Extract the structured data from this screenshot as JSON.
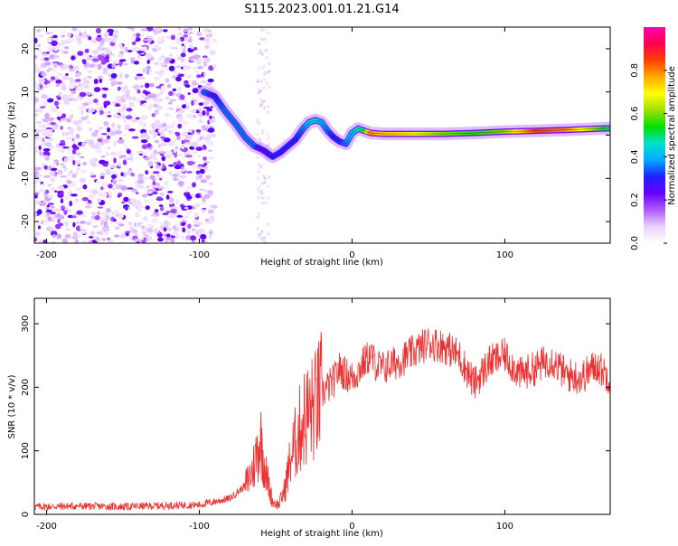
{
  "title": "S115.2023.001.01.21.G14",
  "chart_data": [
    {
      "type": "heatmap",
      "xlabel": "Height of straight line (km)",
      "ylabel": "Frequency (Hz)",
      "xlim": [
        -208,
        169
      ],
      "ylim": [
        -25,
        25
      ],
      "xticks": [
        -200,
        -100,
        0,
        100
      ],
      "yticks": [
        20,
        10,
        0,
        -10,
        -20
      ],
      "colorbar": {
        "label": "Normalized spectral amplitude",
        "range": [
          0,
          1
        ],
        "ticks": [
          0.0,
          0.2,
          0.4,
          0.6,
          0.8
        ],
        "colors": [
          "#ffffff",
          "#e9d2ff",
          "#b05cff",
          "#6a00ff",
          "#2020ff",
          "#00aaff",
          "#00e0d0",
          "#00e000",
          "#a0e000",
          "#ffff00",
          "#ffaa00",
          "#ff4000",
          "#ff0050",
          "#ff00b0"
        ]
      },
      "ridge": {
        "x": [
          -97,
          -90,
          -83,
          -76,
          -70,
          -64,
          -58,
          -52,
          -47,
          -42,
          -37,
          -32,
          -28,
          -24,
          -20,
          -16,
          -12,
          -8,
          -4,
          0,
          4,
          8,
          12,
          20,
          40,
          60,
          80,
          100,
          120,
          140,
          160,
          169
        ],
        "y": [
          10,
          9,
          5.5,
          2.5,
          -0.5,
          -2.5,
          -3.5,
          -5,
          -4,
          -2.5,
          -1,
          1.5,
          3,
          3.5,
          3,
          1,
          -0.5,
          -1.5,
          -2,
          0.5,
          1.5,
          1,
          0.5,
          0.3,
          0.3,
          0.3,
          0.5,
          0.8,
          1.0,
          1.2,
          1.5,
          1.6
        ],
        "amplitude": [
          0.35,
          0.3,
          0.35,
          0.35,
          0.35,
          0.35,
          0.25,
          0.3,
          0.3,
          0.3,
          0.3,
          0.35,
          0.4,
          0.45,
          0.4,
          0.35,
          0.3,
          0.3,
          0.35,
          0.4,
          0.45,
          0.5,
          0.8,
          0.75,
          0.7,
          0.6,
          0.55,
          0.6,
          0.85,
          0.8,
          0.6,
          0.5
        ]
      }
    },
    {
      "type": "line",
      "xlabel": "Height of straight line (km)",
      "ylabel": "SNR (10 * v/v)",
      "xlim": [
        -208,
        169
      ],
      "ylim": [
        0,
        340
      ],
      "xticks": [
        -200,
        -100,
        0,
        100
      ],
      "yticks": [
        0,
        100,
        200,
        300
      ],
      "color": "#ee3030",
      "x": [
        -208,
        -180,
        -150,
        -120,
        -100,
        -80,
        -70,
        -65,
        -60,
        -56,
        -52,
        -48,
        -44,
        -40,
        -36,
        -32,
        -28,
        -24,
        -20,
        -16,
        -12,
        -8,
        -4,
        0,
        4,
        8,
        12,
        16,
        20,
        30,
        40,
        50,
        60,
        70,
        80,
        90,
        100,
        110,
        120,
        130,
        140,
        150,
        160,
        169
      ],
      "y": [
        12,
        13,
        12,
        14,
        15,
        25,
        45,
        70,
        120,
        60,
        20,
        15,
        40,
        90,
        120,
        150,
        160,
        170,
        190,
        200,
        210,
        230,
        220,
        215,
        225,
        240,
        250,
        235,
        230,
        240,
        255,
        270,
        265,
        250,
        205,
        240,
        250,
        220,
        230,
        245,
        220,
        215,
        235,
        215
      ]
    }
  ]
}
